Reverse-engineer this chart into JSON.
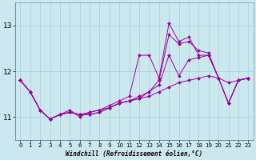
{
  "title": "",
  "xlabel": "Windchill (Refroidissement éolien,°C)",
  "ylabel": "",
  "xlim": [
    -0.5,
    23.5
  ],
  "ylim": [
    10.5,
    13.5
  ],
  "yticks": [
    11,
    12,
    13
  ],
  "xticks": [
    0,
    1,
    2,
    3,
    4,
    5,
    6,
    7,
    8,
    9,
    10,
    11,
    12,
    13,
    14,
    15,
    16,
    17,
    18,
    19,
    20,
    21,
    22,
    23
  ],
  "bg_color": "#cce8ef",
  "grid_color": "#aaccd4",
  "line_color": "#990099",
  "lines": [
    [
      11.8,
      11.55,
      11.15,
      10.95,
      11.05,
      11.1,
      11.05,
      11.1,
      11.15,
      11.2,
      11.3,
      11.35,
      11.4,
      11.45,
      11.55,
      11.65,
      11.75,
      11.8,
      11.85,
      11.9,
      11.85,
      11.75,
      11.8,
      11.85
    ],
    [
      11.8,
      11.55,
      11.15,
      10.95,
      11.05,
      11.1,
      11.05,
      11.05,
      11.1,
      11.2,
      11.3,
      11.35,
      11.45,
      11.55,
      11.8,
      12.8,
      12.6,
      12.65,
      12.45,
      12.4,
      11.85,
      11.3,
      11.8,
      11.85
    ],
    [
      11.8,
      11.55,
      11.15,
      10.95,
      11.05,
      11.15,
      11.0,
      11.1,
      11.15,
      11.25,
      11.35,
      11.45,
      12.35,
      12.35,
      11.85,
      13.05,
      12.65,
      12.75,
      12.35,
      12.35,
      11.85,
      11.3,
      11.8,
      11.85
    ],
    [
      11.8,
      11.55,
      11.15,
      10.95,
      11.05,
      11.1,
      11.05,
      11.05,
      11.1,
      11.2,
      11.3,
      11.35,
      11.4,
      11.55,
      11.7,
      12.35,
      11.9,
      12.25,
      12.3,
      12.35,
      11.85,
      11.3,
      11.8,
      11.85
    ]
  ]
}
